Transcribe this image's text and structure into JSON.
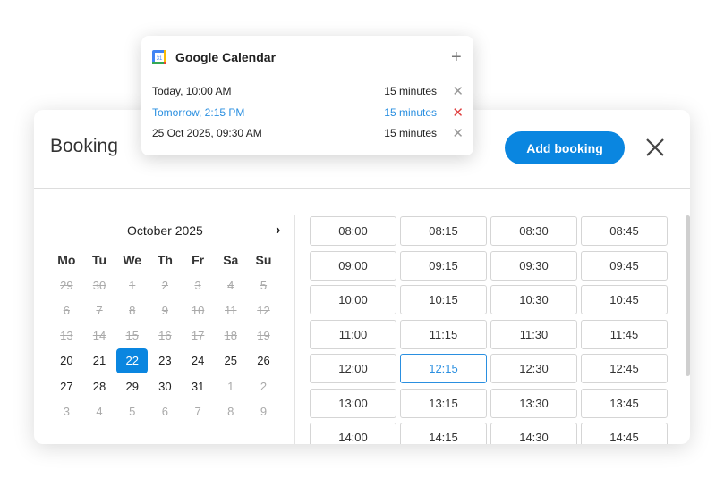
{
  "popup": {
    "title": "Google Calendar",
    "icon": "google-calendar-icon",
    "add_icon": "plus-icon",
    "events": [
      {
        "when": "Today, 10:00 AM",
        "duration": "15 minutes",
        "highlighted": false
      },
      {
        "when": "Tomorrow, 2:15 PM",
        "duration": "15 minutes",
        "highlighted": true
      },
      {
        "when": "25 Oct 2025, 09:30 AM",
        "duration": "15 minutes",
        "highlighted": false
      }
    ]
  },
  "booking": {
    "title": "Booking",
    "add_label": "Add booking",
    "accent": "#0a86e0"
  },
  "calendar": {
    "month": "October 2025",
    "weekdays": [
      "Mo",
      "Tu",
      "We",
      "Th",
      "Fr",
      "Sa",
      "Su"
    ],
    "days": [
      [
        "29",
        "past"
      ],
      [
        "30",
        "past"
      ],
      [
        "1",
        "past"
      ],
      [
        "2",
        "past"
      ],
      [
        "3",
        "past"
      ],
      [
        "4",
        "past"
      ],
      [
        "5",
        "past"
      ],
      [
        "6",
        "past"
      ],
      [
        "7",
        "past"
      ],
      [
        "8",
        "past"
      ],
      [
        "9",
        "past"
      ],
      [
        "10",
        "past"
      ],
      [
        "11",
        "past"
      ],
      [
        "12",
        "past"
      ],
      [
        "13",
        "past"
      ],
      [
        "14",
        "past"
      ],
      [
        "15",
        "past"
      ],
      [
        "16",
        "past"
      ],
      [
        "17",
        "past"
      ],
      [
        "18",
        "past"
      ],
      [
        "19",
        "past"
      ],
      [
        "20",
        ""
      ],
      [
        "21",
        ""
      ],
      [
        "22",
        "sel"
      ],
      [
        "23",
        ""
      ],
      [
        "24",
        ""
      ],
      [
        "25",
        ""
      ],
      [
        "26",
        ""
      ],
      [
        "27",
        ""
      ],
      [
        "28",
        ""
      ],
      [
        "29",
        ""
      ],
      [
        "30",
        ""
      ],
      [
        "31",
        ""
      ],
      [
        "1",
        "other"
      ],
      [
        "2",
        "other"
      ],
      [
        "3",
        "other"
      ],
      [
        "4",
        "other"
      ],
      [
        "5",
        "other"
      ],
      [
        "6",
        "other"
      ],
      [
        "7",
        "other"
      ],
      [
        "8",
        "other"
      ],
      [
        "9",
        "other"
      ]
    ],
    "selected": "22"
  },
  "slots": [
    "08:00",
    "08:15",
    "08:30",
    "08:45",
    "09:00",
    "09:15",
    "09:30",
    "09:45",
    "10:00",
    "10:15",
    "10:30",
    "10:45",
    "11:00",
    "11:15",
    "11:30",
    "11:45",
    "12:00",
    "12:15",
    "12:30",
    "12:45",
    "13:00",
    "13:15",
    "13:30",
    "13:45",
    "14:00",
    "14:15",
    "14:30",
    "14:45"
  ],
  "selected_slot": "12:15"
}
